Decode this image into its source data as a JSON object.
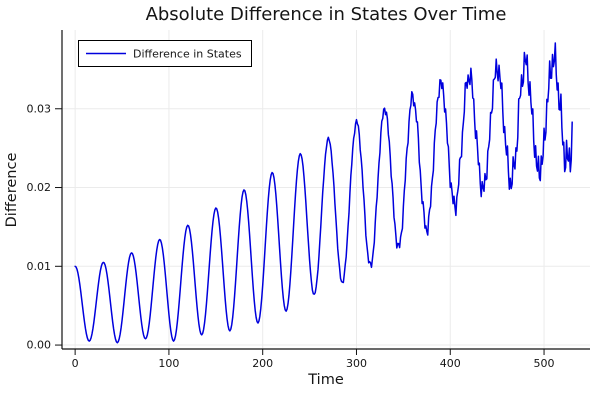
{
  "figure": {
    "background": "#ffffff",
    "text_color": "#151515",
    "grid_color": "#ebebeb"
  },
  "chart_data": {
    "type": "line",
    "title": "Absolute Difference in States Over Time",
    "xlabel": "Time",
    "ylabel": "Difference",
    "xlim": [
      -14,
      549
    ],
    "ylim": [
      -0.0005,
      0.04
    ],
    "xticks": [
      0,
      100,
      200,
      300,
      400,
      500
    ],
    "xtick_labels": [
      "0",
      "100",
      "200",
      "300",
      "400",
      "500"
    ],
    "yticks": [
      0.0,
      0.01,
      0.02,
      0.03
    ],
    "ytick_labels": [
      "0.00",
      "0.01",
      "0.02",
      "0.03"
    ],
    "grid": true,
    "legend": {
      "position": "top-left",
      "entries": [
        {
          "label": "Difference in States",
          "color": "#0000dd"
        }
      ]
    },
    "series": [
      {
        "name": "Difference in States",
        "color": "#0000dd",
        "line_width": 1.5,
        "t_start": 0,
        "t_end": 530,
        "t_step": 1,
        "oscillation": {
          "period": 30,
          "peak_phase_t": 0,
          "abs": true
        },
        "peak_envelope": [
          [
            0,
            0.01
          ],
          [
            30,
            0.0105
          ],
          [
            60,
            0.0117
          ],
          [
            90,
            0.0134
          ],
          [
            120,
            0.0152
          ],
          [
            150,
            0.0174
          ],
          [
            180,
            0.0197
          ],
          [
            210,
            0.0219
          ],
          [
            240,
            0.0243
          ],
          [
            270,
            0.0262
          ],
          [
            300,
            0.0283
          ],
          [
            330,
            0.03
          ],
          [
            360,
            0.0315
          ],
          [
            390,
            0.0333
          ],
          [
            420,
            0.0343
          ],
          [
            450,
            0.0352
          ],
          [
            480,
            0.0358
          ],
          [
            510,
            0.0362
          ],
          [
            530,
            0.036
          ]
        ],
        "trough_envelope": [
          [
            15,
            0.0005
          ],
          [
            45,
            0.0003
          ],
          [
            75,
            0.0008
          ],
          [
            105,
            0.0005
          ],
          [
            135,
            0.0013
          ],
          [
            165,
            0.0018
          ],
          [
            195,
            0.0028
          ],
          [
            225,
            0.0043
          ],
          [
            255,
            0.0064
          ],
          [
            285,
            0.0079
          ],
          [
            315,
            0.01
          ],
          [
            345,
            0.0124
          ],
          [
            375,
            0.0147
          ],
          [
            405,
            0.0177
          ],
          [
            435,
            0.0198
          ],
          [
            465,
            0.0208
          ],
          [
            495,
            0.022
          ],
          [
            525,
            0.0232
          ]
        ],
        "noise": {
          "start_t": 235,
          "max_amp": 0.0033,
          "power": 1.2,
          "scale": 1.0,
          "components": [
            [
              2.1,
              0.8,
              0.55
            ],
            [
              5.3,
              2.4,
              0.3
            ],
            [
              11.7,
              4.1,
              0.15
            ]
          ]
        }
      }
    ]
  }
}
